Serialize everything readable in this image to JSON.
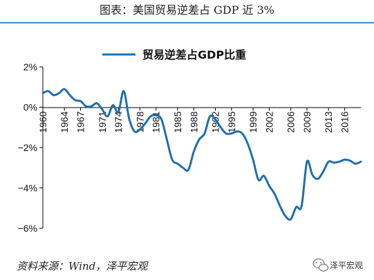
{
  "header": {
    "title": "图表：美国贸易逆差占 GDP 近 3%"
  },
  "footer": {
    "source": "资料来源：Wind，泽平宏观"
  },
  "watermark": {
    "text": "泽平宏观",
    "icon": "wechat-icon"
  },
  "colors": {
    "line": "#1F6EAD",
    "rule": "#1F5FA0",
    "axis": "#000000"
  },
  "chart_data": {
    "type": "line",
    "title": "",
    "xlabel": "",
    "ylabel": "",
    "legend": {
      "placement": "top-center"
    },
    "grid": false,
    "ylim": [
      -6,
      2
    ],
    "xlim": [
      1960,
      2019
    ],
    "yticks": [
      2,
      0,
      -2,
      -4,
      -6
    ],
    "ytick_labels": [
      "2%",
      "0%",
      "−2%",
      "−4%",
      "−6%"
    ],
    "xticks": [
      1960,
      1964,
      1967,
      1971,
      1974,
      1978,
      1981,
      1985,
      1988,
      1992,
      1995,
      1999,
      2002,
      2006,
      2009,
      2013,
      2016
    ],
    "xtick_labels": [
      "1960",
      "1964",
      "1967",
      "1971",
      "1974",
      "1978",
      "1981",
      "1985",
      "1988",
      "1992",
      "1995",
      "1999",
      "2002",
      "2006",
      "2009",
      "2013",
      "2016"
    ],
    "series": [
      {
        "name": "贸易逆差占GDP比重",
        "x": [
          1960,
          1961,
          1962,
          1963,
          1964,
          1965,
          1966,
          1967,
          1968,
          1969,
          1970,
          1971,
          1972,
          1973,
          1974,
          1975,
          1976,
          1977,
          1978,
          1979,
          1980,
          1981,
          1982,
          1983,
          1984,
          1985,
          1986,
          1987,
          1988,
          1989,
          1990,
          1991,
          1992,
          1993,
          1994,
          1995,
          1996,
          1997,
          1998,
          1999,
          2000,
          2001,
          2002,
          2003,
          2004,
          2005,
          2006,
          2007,
          2008,
          2009,
          2010,
          2011,
          2012,
          2013,
          2014,
          2015,
          2016,
          2017,
          2018,
          2019
        ],
        "values": [
          0.7,
          0.8,
          0.6,
          0.7,
          0.9,
          0.6,
          0.35,
          0.3,
          0.05,
          0.05,
          0.2,
          -0.1,
          -0.45,
          0.1,
          -0.25,
          0.8,
          -0.55,
          -1.2,
          -1.1,
          -0.8,
          -0.45,
          -0.4,
          -0.6,
          -1.6,
          -2.6,
          -2.8,
          -3.0,
          -3.1,
          -2.2,
          -1.6,
          -1.3,
          -0.45,
          -0.6,
          -1.0,
          -1.3,
          -1.3,
          -1.2,
          -1.3,
          -1.8,
          -2.6,
          -3.6,
          -3.4,
          -3.9,
          -4.3,
          -4.9,
          -5.4,
          -5.55,
          -4.95,
          -4.9,
          -2.7,
          -3.35,
          -3.55,
          -3.2,
          -2.7,
          -2.75,
          -2.7,
          -2.6,
          -2.65,
          -2.8,
          -2.7
        ]
      }
    ]
  }
}
